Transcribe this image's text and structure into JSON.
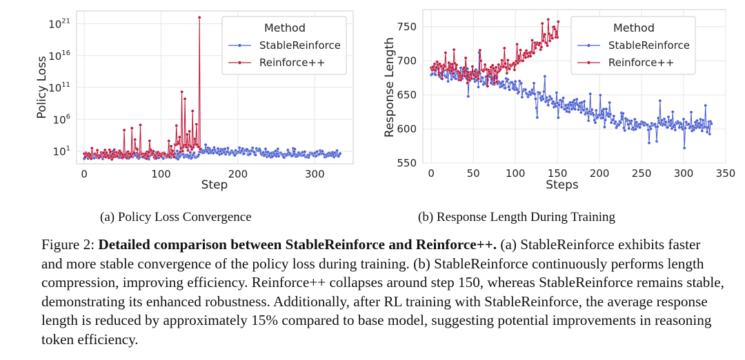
{
  "chart_data": [
    {
      "type": "line",
      "xlabel": "Step",
      "ylabel": "Policy Loss",
      "yscale": "log",
      "xlim": [
        -10,
        350
      ],
      "ylim_log10": [
        -1,
        23
      ],
      "xticks": [
        0,
        100,
        200,
        300
      ],
      "yticks": [
        {
          "exp": 1,
          "label": "10",
          "sup": "1"
        },
        {
          "exp": 6,
          "label": "10",
          "sup": "6"
        },
        {
          "exp": 11,
          "label": "10",
          "sup": "11"
        },
        {
          "exp": 16,
          "label": "10",
          "sup": "16"
        },
        {
          "exp": 21,
          "label": "10",
          "sup": "21"
        }
      ],
      "legend": {
        "title": "Method",
        "position": "top-right"
      },
      "series": [
        {
          "name": "StableReinforce",
          "color": "#4c5fd0",
          "steps": 334,
          "note": "log10 loss fluctuates roughly between -0.2 and 2.0"
        },
        {
          "name": "Reinforce++",
          "color": "#c0193b",
          "steps": 152,
          "note": "spikes: step 52 ~1e4, 62 ~1e4.5, 73 ~1e5, 120 ~1e5, 127 ~1e10, 131 ~1e9, 141 ~1e7, 146 ~1e5, 150 ~1e22"
        }
      ]
    },
    {
      "type": "line",
      "xlabel": "Steps",
      "ylabel": "Response Length",
      "xlim": [
        -10,
        350
      ],
      "ylim": [
        550,
        775
      ],
      "xticks": [
        0,
        50,
        100,
        150,
        200,
        250,
        300,
        350
      ],
      "yticks": [
        550,
        600,
        650,
        700,
        750
      ],
      "legend": {
        "title": "Method",
        "position": "top-right"
      },
      "series": [
        {
          "name": "StableReinforce",
          "color": "#4c5fd0",
          "steps": 334,
          "trend": "decreasing from ~690 to ~605 with noise"
        },
        {
          "name": "Reinforce++",
          "color": "#c0193b",
          "steps": 152,
          "trend": "dips to ~675 near step 50, rises to ~740-770 by step 150"
        }
      ]
    }
  ],
  "subcaptions": {
    "a": "(a)  Policy Loss Convergence",
    "b": "(b)  Response Length During Training"
  },
  "caption": {
    "label": "Figure 2: ",
    "bold": "Detailed comparison between StableReinforce and Reinforce++.",
    "text": " (a) StableReinforce exhibits faster and more stable convergence of the policy loss during training. (b) StableReinforce continuously performs length compression, improving efficiency. Reinforce++ collapses around step 150, whereas StableReinforce remains stable, demonstrating its enhanced robustness. Additionally, after RL training with StableReinforce, the average response length is reduced by approximately 15% compared to base model, suggesting potential improvements in reasoning token efficiency."
  }
}
